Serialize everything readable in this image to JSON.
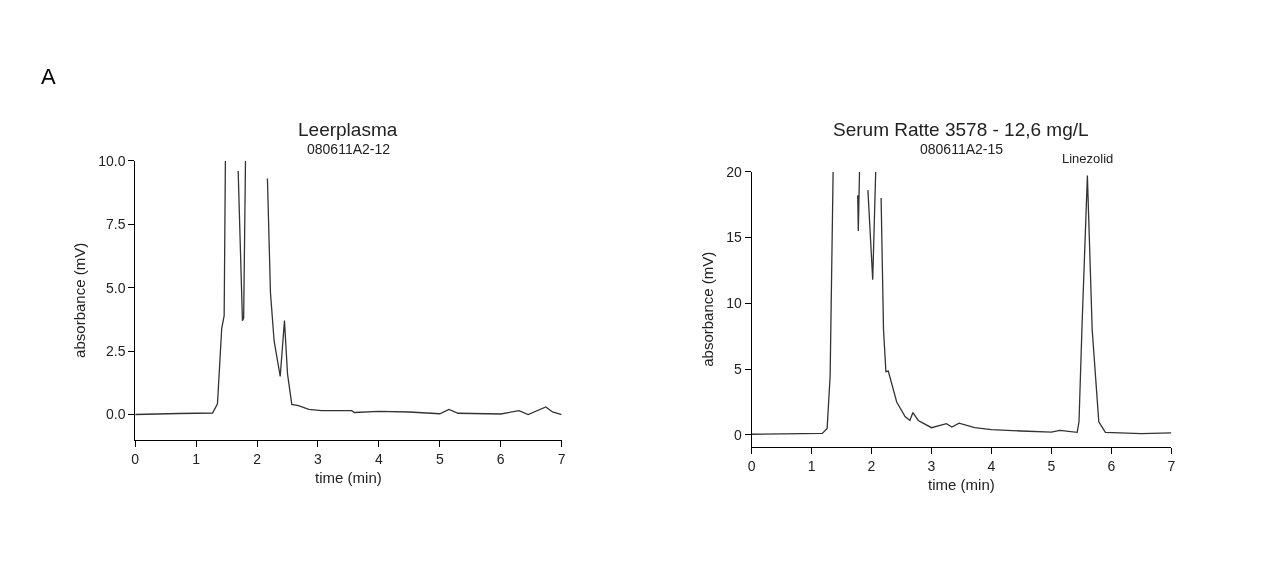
{
  "chart_data": [
    {
      "type": "line",
      "title": "Leerplasma",
      "subtitle": "080611A2-12",
      "xlabel": "time (min)",
      "ylabel": "absorbance (mV)",
      "annotations": [
        "A"
      ],
      "x": [
        0,
        0.72,
        1.27,
        1.35,
        1.42,
        1.46,
        1.48,
        1.58,
        1.69,
        1.76,
        1.78,
        1.81,
        2.0,
        2.17,
        2.22,
        2.28,
        2.38,
        2.45,
        2.5,
        2.57,
        2.68,
        2.85,
        3.06,
        3.55,
        3.6,
        4.0,
        4.5,
        5.0,
        5.15,
        5.3,
        6.0,
        6.3,
        6.45,
        6.74,
        6.85,
        7.0
      ],
      "series": [
        {
          "color": "#333333",
          "values": [
            0.0,
            0.04,
            0.06,
            0.42,
            3.4,
            3.9,
            10.0,
            null,
            9.6,
            3.7,
            3.8,
            10.0,
            null,
            9.3,
            4.8,
            2.9,
            1.5,
            3.7,
            1.6,
            0.4,
            0.35,
            0.2,
            0.15,
            0.15,
            0.08,
            0.12,
            0.1,
            0.03,
            0.2,
            0.05,
            0.02,
            0.15,
            0.0,
            0.3,
            0.1,
            0.0
          ]
        }
      ],
      "xlim": [
        0,
        7
      ],
      "xticks": [
        0,
        1,
        2,
        3,
        4,
        5,
        6,
        7
      ],
      "ylim": [
        -1.0,
        10.0
      ],
      "yticks": [
        {
          "value": 0,
          "label": "0.0"
        },
        {
          "value": 2.5,
          "label": "2.5"
        },
        {
          "value": 5,
          "label": "5.0"
        },
        {
          "value": 7.5,
          "label": "7.5"
        },
        {
          "value": 10,
          "label": "10.0"
        }
      ],
      "marker": "none",
      "line_style": "solid"
    },
    {
      "type": "line",
      "title": "Serum Ratte 3578 - 12,6 mg/L",
      "subtitle": "080611A2-15",
      "xlabel": "time (min)",
      "ylabel": "absorbance (mV)",
      "annotations": [
        {
          "text": "Linezolid",
          "x": 5.6,
          "y": 19.7
        }
      ],
      "x": [
        0,
        1.18,
        1.26,
        1.31,
        1.36,
        1.5,
        1.77,
        1.78,
        1.8,
        1.87,
        1.94,
        2.02,
        2.07,
        2.12,
        2.16,
        2.2,
        2.24,
        2.28,
        2.42,
        2.56,
        2.64,
        2.69,
        2.78,
        2.86,
        3.0,
        3.25,
        3.34,
        3.46,
        3.72,
        4.0,
        4.5,
        5.0,
        5.14,
        5.43,
        5.46,
        5.51,
        5.6,
        5.68,
        5.79,
        5.9,
        6.5,
        7.0
      ],
      "series": [
        {
          "color": "#333333",
          "values": [
            0.05,
            0.12,
            0.5,
            4.5,
            20,
            null,
            18.2,
            15.5,
            20,
            null,
            18.6,
            11.8,
            20,
            null,
            18.0,
            8.0,
            4.8,
            4.85,
            2.5,
            1.4,
            1.1,
            1.7,
            1.1,
            0.9,
            0.55,
            0.85,
            0.6,
            0.9,
            0.55,
            0.4,
            0.3,
            0.22,
            0.35,
            0.2,
            1.0,
            8.2,
            19.7,
            8.0,
            1.0,
            0.2,
            0.1,
            0.15
          ]
        }
      ],
      "xlim": [
        0,
        7
      ],
      "xticks": [
        0,
        1,
        2,
        3,
        4,
        5,
        6,
        7
      ],
      "ylim": [
        -0.9,
        20
      ],
      "yticks": [
        0,
        5,
        10,
        15,
        20
      ],
      "marker": "none",
      "line_style": "solid"
    }
  ]
}
